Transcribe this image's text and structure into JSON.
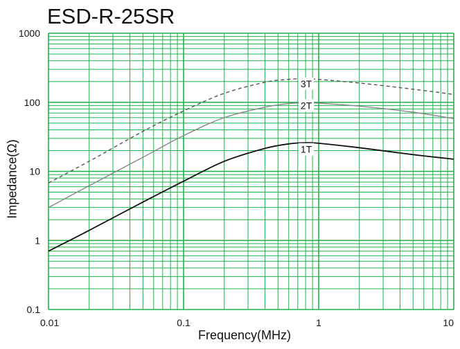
{
  "chart_data": {
    "type": "line",
    "title": "ESD-R-25SR",
    "xlabel": "Frequency(MHz)",
    "ylabel": "Impedance(Ω)",
    "xscale": "log",
    "yscale": "log",
    "xlim": [
      0.01,
      10
    ],
    "ylim": [
      0.1,
      1000
    ],
    "grid": true,
    "grid_color": "#21b04b",
    "xticks": [
      {
        "value": 0.01,
        "label": "0.01"
      },
      {
        "value": 0.1,
        "label": "0.1"
      },
      {
        "value": 1,
        "label": "1"
      },
      {
        "value": 10,
        "label": "10"
      }
    ],
    "yticks": [
      {
        "value": 0.1,
        "label": "0.1"
      },
      {
        "value": 1,
        "label": "1"
      },
      {
        "value": 10,
        "label": "10"
      },
      {
        "value": 100,
        "label": "100"
      },
      {
        "value": 1000,
        "label": "1000"
      }
    ],
    "series": [
      {
        "name": "3T",
        "color": "#555555",
        "style": "dashed",
        "label_at": [
          0.8,
          170
        ],
        "points": [
          [
            0.01,
            6.8
          ],
          [
            0.02,
            14
          ],
          [
            0.05,
            38
          ],
          [
            0.1,
            75
          ],
          [
            0.2,
            135
          ],
          [
            0.4,
            195
          ],
          [
            0.6,
            215
          ],
          [
            0.8,
            220
          ],
          [
            1,
            215
          ],
          [
            2,
            190
          ],
          [
            5,
            155
          ],
          [
            10,
            130
          ]
        ]
      },
      {
        "name": "2T",
        "color": "#888888",
        "style": "solid",
        "label_at": [
          0.8,
          82
        ],
        "points": [
          [
            0.01,
            3
          ],
          [
            0.02,
            6.2
          ],
          [
            0.05,
            16
          ],
          [
            0.1,
            33
          ],
          [
            0.2,
            60
          ],
          [
            0.4,
            85
          ],
          [
            0.6,
            96
          ],
          [
            0.8,
            98
          ],
          [
            1,
            97
          ],
          [
            2,
            88
          ],
          [
            5,
            72
          ],
          [
            10,
            58
          ]
        ]
      },
      {
        "name": "1T",
        "color": "#111111",
        "style": "solid",
        "label_at": [
          0.8,
          19
        ],
        "points": [
          [
            0.01,
            0.7
          ],
          [
            0.02,
            1.4
          ],
          [
            0.05,
            3.6
          ],
          [
            0.1,
            7.2
          ],
          [
            0.2,
            14
          ],
          [
            0.4,
            21.5
          ],
          [
            0.6,
            25
          ],
          [
            0.8,
            26
          ],
          [
            1,
            25.5
          ],
          [
            2,
            22
          ],
          [
            5,
            17.5
          ],
          [
            10,
            15
          ]
        ]
      }
    ]
  }
}
